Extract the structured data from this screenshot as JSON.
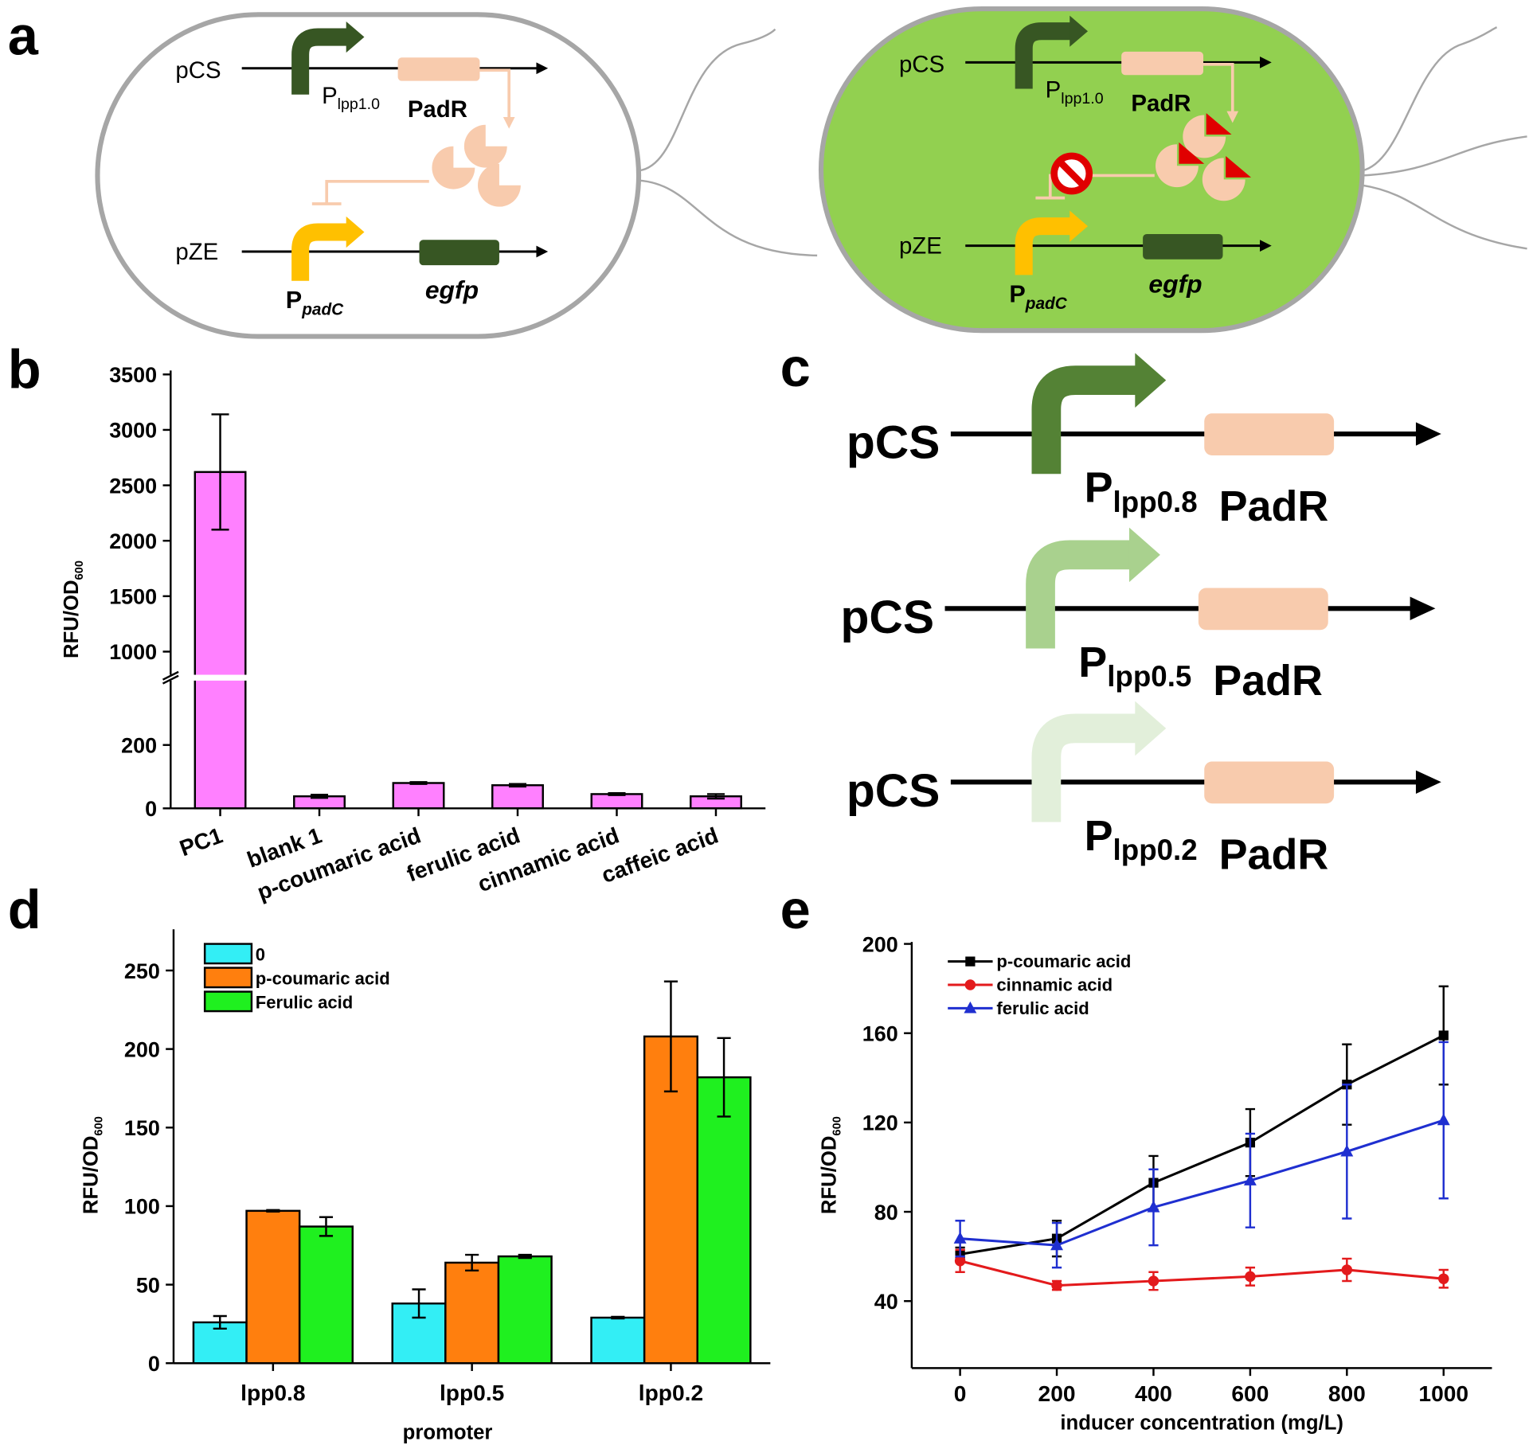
{
  "figure": {
    "a": {
      "label": "a",
      "cells": [
        {
          "plasmids": [
            {
              "name": "pCS",
              "promoter": "P",
              "promoter_sub": "lpp1.0",
              "gene": "PadR"
            },
            {
              "name": "pZE",
              "promoter": "P",
              "promoter_sub": "padC",
              "gene": "egfp"
            }
          ]
        },
        {
          "plasmids": [
            {
              "name": "pCS",
              "promoter": "P",
              "promoter_sub": "lpp1.0",
              "gene": "PadR"
            },
            {
              "name": "pZE",
              "promoter": "P",
              "promoter_sub": "padC",
              "gene": "egfp"
            }
          ]
        }
      ]
    },
    "c": {
      "label": "c",
      "rows": [
        {
          "name": "pCS",
          "promoter": "P",
          "promoter_sub": "lpp0.8",
          "gene": "PadR",
          "color": "#548235"
        },
        {
          "name": "pCS",
          "promoter": "P",
          "promoter_sub": "lpp0.5",
          "gene": "PadR",
          "color": "#a9d18e"
        },
        {
          "name": "pCS",
          "promoter": "P",
          "promoter_sub": "lpp0.2",
          "gene": "PadR",
          "color": "#e2efda"
        }
      ]
    }
  },
  "chart_data": [
    {
      "panel_label": "b",
      "type": "bar",
      "ylabel": "RFU/OD",
      "ylabel_sub": "600",
      "categories": [
        "PC1",
        "blank 1",
        "p-coumaric acid",
        "ferulic acid",
        "cinnamic acid",
        "caffeic acid"
      ],
      "values": [
        2620,
        38,
        80,
        73,
        45,
        38
      ],
      "errors": [
        520,
        5,
        3,
        4,
        3,
        7
      ],
      "color": "#ff80ff",
      "ylim": [
        0,
        3500
      ],
      "ybreak": [
        400,
        800
      ],
      "yticks": [
        0,
        200,
        1000,
        1500,
        2000,
        2500,
        3000,
        3500
      ]
    },
    {
      "panel_label": "d",
      "type": "grouped_bar",
      "ylabel": "RFU/OD",
      "ylabel_sub": "600",
      "xlabel": "promoter",
      "categories": [
        "lpp0.8",
        "lpp0.5",
        "lpp0.2"
      ],
      "series": [
        {
          "name": "0",
          "color": "#33eef5",
          "values": [
            26,
            38,
            29
          ],
          "errors": [
            4,
            9,
            0.5
          ]
        },
        {
          "name": "p-coumaric acid",
          "color": "#ff7f0e",
          "values": [
            97,
            64,
            208
          ],
          "errors": [
            0.5,
            5,
            35
          ]
        },
        {
          "name": "Ferulic acid",
          "color": "#1ff01f",
          "values": [
            87,
            68,
            182
          ],
          "errors": [
            6,
            1,
            25
          ]
        }
      ],
      "ylim": [
        0,
        275
      ],
      "yticks": [
        0,
        50,
        100,
        150,
        200,
        250
      ]
    },
    {
      "panel_label": "e",
      "type": "line",
      "ylabel": "RFU/OD",
      "ylabel_sub": "600",
      "xlabel": "inducer concentration (mg/L)",
      "x": [
        0,
        200,
        400,
        600,
        800,
        1000
      ],
      "series": [
        {
          "name": "p-coumaric acid",
          "color": "#000000",
          "marker": "square",
          "values": [
            61,
            68,
            93,
            111,
            137,
            159
          ],
          "errors": [
            3,
            8,
            12,
            15,
            18,
            22
          ]
        },
        {
          "name": "cinnamic acid",
          "color": "#e31a1c",
          "marker": "circle",
          "values": [
            58,
            47,
            49,
            51,
            54,
            50
          ],
          "errors": [
            5,
            2,
            4,
            4,
            5,
            4
          ]
        },
        {
          "name": "ferulic acid",
          "color": "#1f2fd0",
          "marker": "triangle",
          "values": [
            68,
            65,
            82,
            94,
            107,
            121
          ],
          "errors": [
            8,
            10,
            17,
            21,
            30,
            35
          ]
        }
      ],
      "xlim": [
        -100,
        1100
      ],
      "xticks": [
        0,
        200,
        400,
        600,
        800,
        1000
      ],
      "ylim": [
        10,
        200
      ],
      "yticks": [
        40,
        80,
        120,
        160,
        200
      ]
    }
  ]
}
